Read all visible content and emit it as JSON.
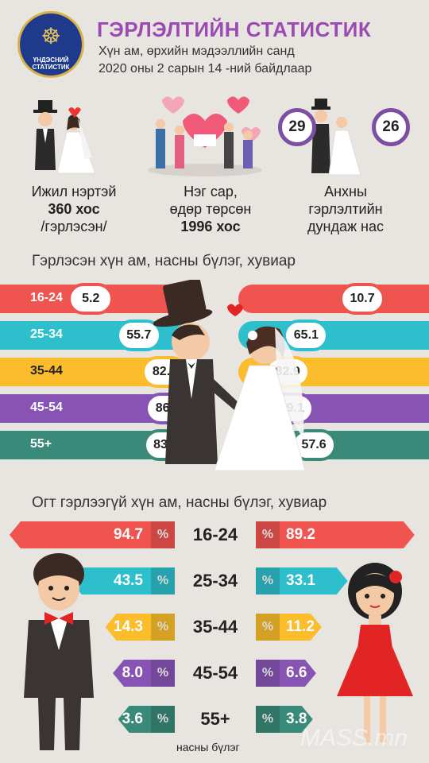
{
  "logo": {
    "text_line1": "ҮНДЭСНИЙ",
    "text_line2": "СТАТИСТИК",
    "symbol": "soyombo-icon"
  },
  "header": {
    "title": "ГЭРЛЭЛТИЙН СТАТИСТИК",
    "subtitle1": "Хүн ам, өрхийн мэдээллийн санд",
    "subtitle2": "2020 оны 2 сарын 14 -ний байдлаар"
  },
  "stats": {
    "same_name": {
      "line1": "Ижил нэртэй",
      "line2": "360 хос",
      "line3": "/гэрлэсэн/"
    },
    "same_birthday": {
      "line1": "Нэг сар,",
      "line2": "өдөр төрсөн",
      "line3": "1996 хос"
    },
    "avg_age": {
      "male": "29",
      "female": "26",
      "line1": "Анхны",
      "line2": "гэрлэлтийн",
      "line3": "дундаж нас"
    }
  },
  "married_title": "Гэрлэсэн хүн ам, насны бүлэг, хувиар",
  "unmarried_title": "Огт гэрлээгүй хүн ам, насны бүлэг, хувиар",
  "unmarried_footer": "насны бүлэг",
  "pct_symbol": "%",
  "watermark": "MASS.mn",
  "colors": {
    "red": "#f0544f",
    "teal": "#2ebfcc",
    "yellow": "#fbbd2c",
    "purple": "#8754b4",
    "green": "#3a8a79"
  },
  "chart_data": [
    {
      "type": "bar",
      "title": "Гэрлэсэн хүн ам, насны бүлэг, хувиар",
      "categories": [
        "16-24",
        "25-34",
        "35-44",
        "45-54",
        "55+"
      ],
      "series": [
        {
          "values": [
            5.2,
            55.7,
            82.9,
            86.1,
            83.9
          ]
        },
        {
          "values": [
            10.7,
            65.1,
            82.9,
            79.1,
            57.6
          ]
        }
      ]
    },
    {
      "type": "bar",
      "title": "Огт гэрлээгүй хүн ам, насны бүлэг, хувиар",
      "categories": [
        "16-24",
        "25-34",
        "35-44",
        "45-54",
        "55+"
      ],
      "series": [
        {
          "values": [
            94.7,
            43.5,
            14.3,
            8.0,
            3.6
          ]
        },
        {
          "values": [
            89.2,
            33.1,
            11.2,
            6.6,
            3.8
          ]
        }
      ]
    }
  ]
}
